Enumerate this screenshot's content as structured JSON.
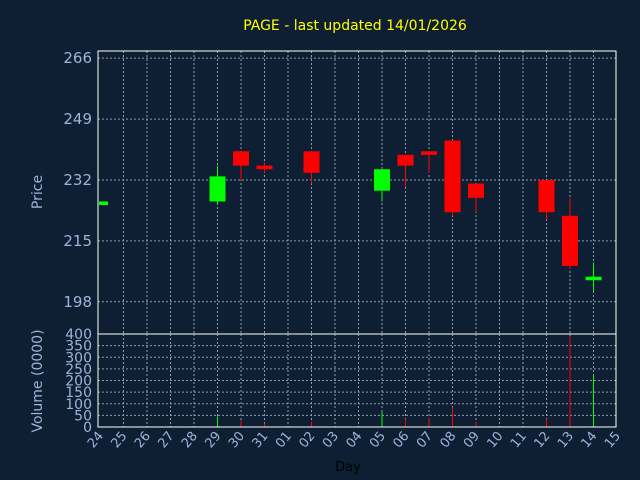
{
  "chart_data": {
    "type": "candlestick",
    "title": "PAGE - last updated 14/01/2026",
    "xlabel": "Day",
    "ylabel_price": "Price",
    "ylabel_volume": "Volume (0000)",
    "price_ylim": [
      189,
      268
    ],
    "price_ticks": [
      198,
      215,
      232,
      249,
      266
    ],
    "volume_ylim": [
      0,
      400
    ],
    "volume_ticks": [
      0,
      50,
      100,
      150,
      200,
      250,
      300,
      350,
      400
    ],
    "grid": true,
    "x_labels": [
      "24",
      "25",
      "26",
      "27",
      "28",
      "29",
      "30",
      "31",
      "01",
      "02",
      "03",
      "04",
      "05",
      "06",
      "07",
      "08",
      "09",
      "10",
      "11",
      "12",
      "13",
      "14",
      "15"
    ],
    "candles": [
      {
        "idx": 0,
        "open": 225,
        "close": 226,
        "high": 226,
        "low": 225,
        "volume": 0
      },
      {
        "idx": 5,
        "open": 226,
        "close": 233,
        "high": 236,
        "low": 225,
        "volume": 45
      },
      {
        "idx": 6,
        "open": 240,
        "close": 236,
        "high": 240,
        "low": 232,
        "volume": 30
      },
      {
        "idx": 7,
        "open": 236,
        "close": 235,
        "high": 237,
        "low": 234,
        "volume": 15
      },
      {
        "idx": 9,
        "open": 240,
        "close": 234,
        "high": 240,
        "low": 231,
        "volume": 25
      },
      {
        "idx": 12,
        "open": 229,
        "close": 235,
        "high": 235,
        "low": 226,
        "volume": 65
      },
      {
        "idx": 13,
        "open": 239,
        "close": 236,
        "high": 239,
        "low": 230,
        "volume": 35
      },
      {
        "idx": 14,
        "open": 240,
        "close": 239,
        "high": 240,
        "low": 234,
        "volume": 40
      },
      {
        "idx": 15,
        "open": 243,
        "close": 223,
        "high": 243,
        "low": 222,
        "volume": 85
      },
      {
        "idx": 16,
        "open": 231,
        "close": 227,
        "high": 231,
        "low": 223,
        "volume": 20
      },
      {
        "idx": 19,
        "open": 232,
        "close": 223,
        "high": 232,
        "low": 221,
        "volume": 35
      },
      {
        "idx": 20,
        "open": 222,
        "close": 208,
        "high": 227,
        "low": 207,
        "volume": 390
      },
      {
        "idx": 21,
        "open": 204,
        "close": 205,
        "high": 209,
        "low": 201,
        "volume": 225
      }
    ],
    "colors": {
      "background": "#0f1f33",
      "up": "#00ff00",
      "down": "#ff0000",
      "text": "#9cb4d8",
      "title": "#ffff00",
      "frame": "#ffffff",
      "grid": "#8c9bb0"
    }
  }
}
